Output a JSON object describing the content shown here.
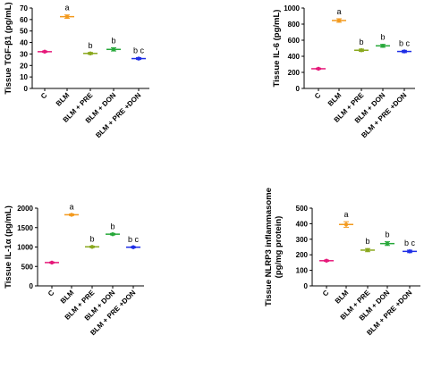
{
  "chart_data": [
    {
      "type": "scatter",
      "ylabel": "Tissue TGF-β1 (pg/mL)",
      "ylim": [
        0,
        70
      ],
      "yticks": [
        0,
        10,
        20,
        30,
        40,
        50,
        60,
        70
      ],
      "categories": [
        "C",
        "BLM",
        "BLM + PRE",
        "BLM + DON",
        "BLM + PRE +DON"
      ],
      "values": [
        32,
        62.5,
        30.5,
        34,
        26
      ],
      "errors": [
        0.6,
        1.5,
        0.8,
        1.4,
        0.8
      ],
      "annotations": [
        "",
        "a",
        "b",
        "b",
        "b c"
      ],
      "colors": [
        "#e6197a",
        "#f39a1e",
        "#8aa81e",
        "#27a83a",
        "#1e2ee6"
      ]
    },
    {
      "type": "scatter",
      "ylabel": "Tissue IL-6 (pg/mL)",
      "ylim": [
        0,
        1000
      ],
      "yticks": [
        0,
        200,
        400,
        600,
        800,
        1000
      ],
      "categories": [
        "C",
        "BLM",
        "BLM + PRE",
        "BLM + DON",
        "BLM + PRE +DON"
      ],
      "values": [
        245,
        845,
        475,
        530,
        460
      ],
      "errors": [
        8,
        22,
        15,
        18,
        14
      ],
      "annotations": [
        "",
        "a",
        "b",
        "b",
        "b c"
      ],
      "colors": [
        "#e6197a",
        "#f39a1e",
        "#8aa81e",
        "#27a83a",
        "#1e2ee6"
      ]
    },
    {
      "type": "scatter",
      "ylabel": "Tissue IL-1α (pg/mL)",
      "ylim": [
        0,
        2000
      ],
      "yticks": [
        0,
        500,
        1000,
        1500,
        2000
      ],
      "categories": [
        "C",
        "BLM",
        "BLM + PRE",
        "BLM + DON",
        "BLM + PRE +DON"
      ],
      "values": [
        600,
        1830,
        1005,
        1330,
        995
      ],
      "errors": [
        15,
        20,
        18,
        20,
        15
      ],
      "annotations": [
        "",
        "a",
        "b",
        "b",
        "b c"
      ],
      "colors": [
        "#e6197a",
        "#f39a1e",
        "#8aa81e",
        "#27a83a",
        "#1e2ee6"
      ]
    },
    {
      "type": "scatter",
      "ylabel": "Tissue NLRP3 inflammasome",
      "ylabel2": "(pg/mg protein)",
      "ylim": [
        0,
        500
      ],
      "yticks": [
        0,
        100,
        200,
        300,
        400,
        500
      ],
      "categories": [
        "C",
        "BLM",
        "BLM + PRE",
        "BLM + DON",
        "BLM + PRE +DON"
      ],
      "values": [
        162,
        395,
        230,
        272,
        222
      ],
      "errors": [
        4,
        18,
        10,
        12,
        8
      ],
      "annotations": [
        "",
        "a",
        "b",
        "b",
        "b c"
      ],
      "colors": [
        "#e6197a",
        "#f39a1e",
        "#8aa81e",
        "#27a83a",
        "#1e2ee6"
      ]
    }
  ]
}
